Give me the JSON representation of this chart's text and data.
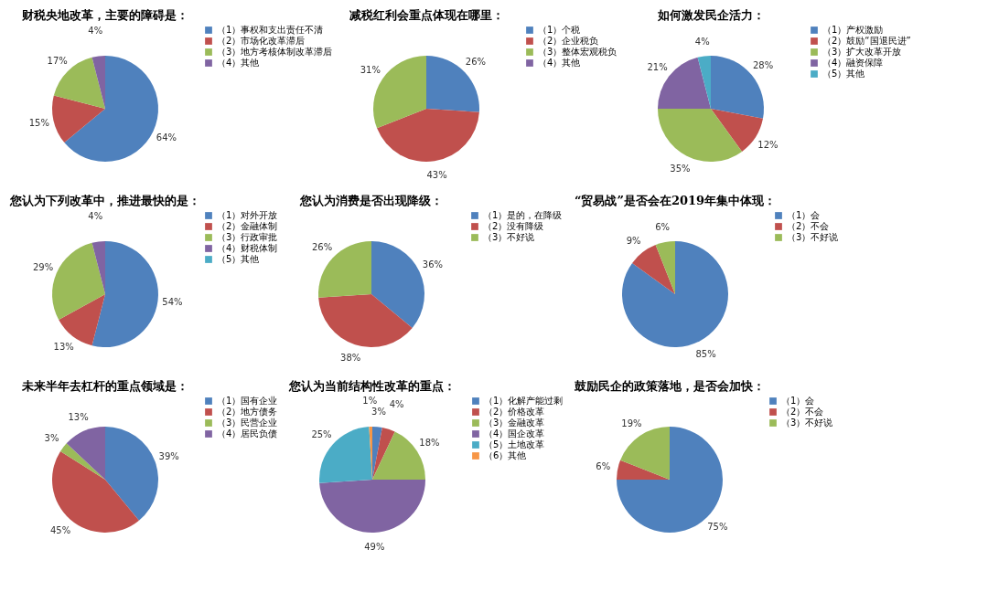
{
  "chart_data": [
    {
      "type": "pie",
      "title": "财税央地改革，主要的障碍是：",
      "categories": [
        "（1）事权和支出责任不清",
        "（2）市场化改革滞后",
        "（3）地方考核体制改革滞后",
        "（4）其他"
      ],
      "values": [
        64,
        15,
        17,
        4
      ],
      "colors": [
        "#4f81bd",
        "#c0504d",
        "#9bbb59",
        "#8064a2"
      ],
      "value_labels": [
        "64%",
        "15%",
        "17%",
        "4%"
      ],
      "legend": "right"
    },
    {
      "type": "pie",
      "title": "减税红利会重点体现在哪里：",
      "categories": [
        "（1）个税",
        "（2）企业税负",
        "（3）整体宏观税负",
        "（4）其他"
      ],
      "values": [
        26,
        43,
        31,
        0
      ],
      "colors": [
        "#4f81bd",
        "#c0504d",
        "#9bbb59",
        "#8064a2"
      ],
      "value_labels": [
        "26%",
        "43%",
        "31%",
        null
      ],
      "legend": "right"
    },
    {
      "type": "pie",
      "title": "如何激发民企活力：",
      "categories": [
        "（1）产权激励",
        "（2）鼓励“国退民进”",
        "（3）扩大改革开放",
        "（4）融资保障",
        "（5）其他"
      ],
      "values": [
        28,
        12,
        35,
        21,
        4
      ],
      "colors": [
        "#4f81bd",
        "#c0504d",
        "#9bbb59",
        "#8064a2",
        "#4bacc6"
      ],
      "value_labels": [
        "28%",
        "12%",
        "35%",
        "21%",
        "4%"
      ],
      "legend": "right"
    },
    {
      "type": "pie",
      "title": "您认为下列改革中，推进最快的是：",
      "categories": [
        "（1）对外开放",
        "（2）金融体制",
        "（3）行政审批",
        "（4）财税体制",
        "（5）其他"
      ],
      "values": [
        54,
        13,
        29,
        4,
        0
      ],
      "colors": [
        "#4f81bd",
        "#c0504d",
        "#9bbb59",
        "#8064a2",
        "#4bacc6"
      ],
      "value_labels": [
        "54%",
        "13%",
        "29%",
        "4%",
        null
      ],
      "legend": "right"
    },
    {
      "type": "pie",
      "title": "您认为消费是否出现降级：",
      "categories": [
        "（1）是的，在降级",
        "（2）没有降级",
        "（3）不好说"
      ],
      "values": [
        36,
        38,
        26
      ],
      "colors": [
        "#4f81bd",
        "#c0504d",
        "#9bbb59"
      ],
      "value_labels": [
        "36%",
        "38%",
        "26%"
      ],
      "legend": "right"
    },
    {
      "type": "pie",
      "title": "“贸易战”是否会在2019年集中体现：",
      "categories": [
        "（1）会",
        "（2）不会",
        "（3）不好说"
      ],
      "values": [
        85,
        9,
        6
      ],
      "colors": [
        "#4f81bd",
        "#c0504d",
        "#9bbb59"
      ],
      "value_labels": [
        "85%",
        "9%",
        "6%"
      ],
      "legend": "right"
    },
    {
      "type": "pie",
      "title": "未来半年去杠杆的重点领域是：",
      "categories": [
        "（1）国有企业",
        "（2）地方债务",
        "（3）民营企业",
        "（4）居民负债"
      ],
      "values": [
        39,
        45,
        3,
        13
      ],
      "colors": [
        "#4f81bd",
        "#c0504d",
        "#9bbb59",
        "#8064a2"
      ],
      "value_labels": [
        "39%",
        "45%",
        "3%",
        "13%"
      ],
      "legend": "right"
    },
    {
      "type": "pie",
      "title": "您认为当前结构性改革的重点：",
      "categories": [
        "（1）化解产能过剩",
        "（2）价格改革",
        "（3）金融改革",
        "（4）国企改革",
        "（5）土地改革",
        "（6）其他"
      ],
      "values": [
        3,
        4,
        18,
        49,
        25,
        1
      ],
      "colors": [
        "#4f81bd",
        "#c0504d",
        "#9bbb59",
        "#8064a2",
        "#4bacc6",
        "#f79646"
      ],
      "value_labels": [
        "3%",
        "4%",
        "18%",
        "49%",
        "25%",
        "1%"
      ],
      "legend": "right"
    },
    {
      "type": "pie",
      "title": "鼓励民企的政策落地，是否会加快：",
      "categories": [
        "（1）会",
        "（2）不会",
        "（3）不好说"
      ],
      "values": [
        75,
        6,
        19
      ],
      "colors": [
        "#4f81bd",
        "#c0504d",
        "#9bbb59"
      ],
      "value_labels": [
        "75%",
        "6%",
        "19%"
      ],
      "legend": "right"
    }
  ]
}
